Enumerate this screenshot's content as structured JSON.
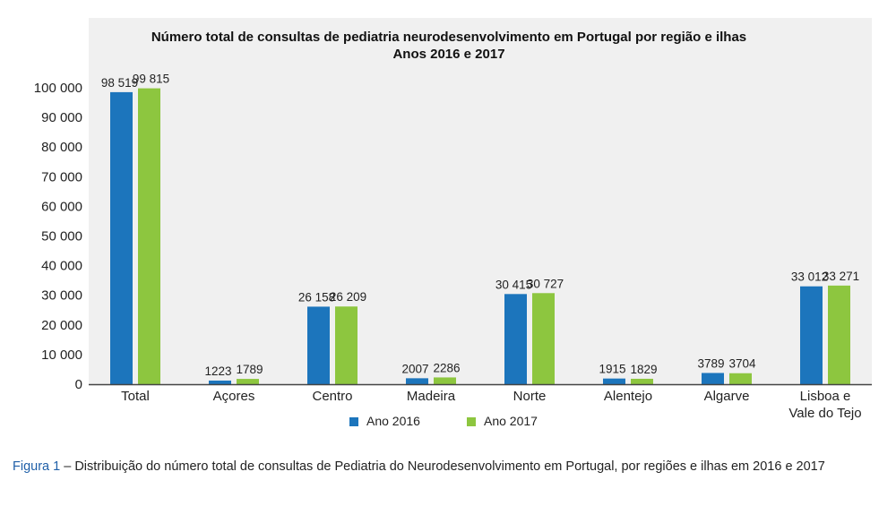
{
  "chart_data": {
    "type": "bar",
    "title": "Número total de consultas de pediatria neurodesenvolvimento em Portugal por região e ilhas",
    "subtitle": "Anos 2016 e 2017",
    "xlabel": "",
    "ylabel": "",
    "ylim": [
      0,
      100000
    ],
    "yticks": [
      0,
      10000,
      20000,
      30000,
      40000,
      50000,
      60000,
      70000,
      80000,
      90000,
      100000
    ],
    "ytick_labels": [
      "0",
      "10 000",
      "20 000",
      "30 000",
      "40 000",
      "50 000",
      "60 000",
      "70 000",
      "80 000",
      "90 000",
      "100 000"
    ],
    "grid": false,
    "legend_position": "bottom-center",
    "categories": [
      "Total",
      "Açores",
      "Centro",
      "Madeira",
      "Norte",
      "Alentejo",
      "Algarve",
      [
        "Lisboa e",
        "Vale do Tejo"
      ]
    ],
    "series": [
      {
        "name": "Ano 2016",
        "color": "#1c75bc",
        "values": [
          98519,
          1223,
          26158,
          2007,
          30415,
          1915,
          3789,
          33012
        ],
        "labels": [
          "98 519",
          "1223",
          "26 158",
          "2007",
          "30 415",
          "1915",
          "3789",
          "33 012"
        ]
      },
      {
        "name": "Ano 2017",
        "color": "#8dc63f",
        "values": [
          99815,
          1789,
          26209,
          2286,
          30727,
          1829,
          3704,
          33271
        ],
        "labels": [
          "99 815",
          "1789",
          "26 209",
          "2286",
          "30 727",
          "1829",
          "3704",
          "33 271"
        ]
      }
    ]
  },
  "caption": {
    "figure_label": "Figura 1",
    "text": " – Distribuição do número total de consultas de Pediatria do Neurodesenvolvimento em Portugal, por regiões e ilhas em 2016 e 2017"
  }
}
